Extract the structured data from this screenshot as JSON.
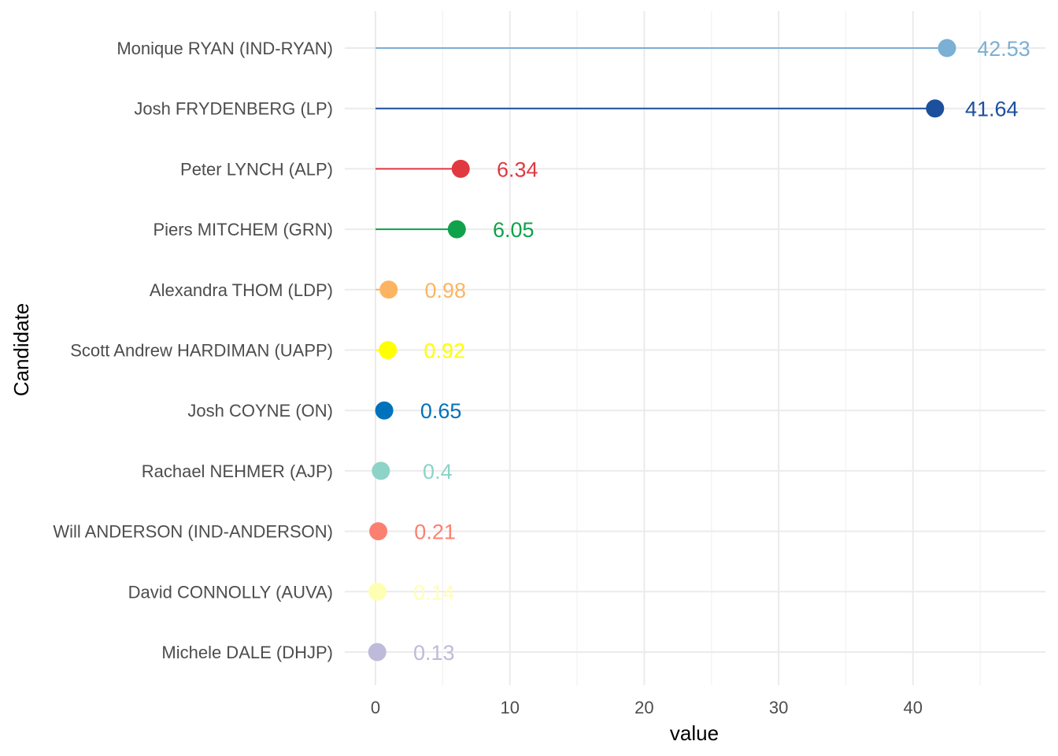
{
  "chart_data": {
    "type": "lollipop",
    "xlabel": "value",
    "ylabel": "Candidate",
    "xlim": [
      -2,
      48
    ],
    "xticks": [
      0,
      10,
      20,
      30,
      40
    ],
    "grid": true,
    "categories": [
      "Monique RYAN (IND-RYAN)",
      "Josh FRYDENBERG (LP)",
      "Peter LYNCH (ALP)",
      "Piers MITCHEM (GRN)",
      "Alexandra THOM (LDP)",
      "Scott Andrew HARDIMAN (UAPP)",
      "Josh COYNE (ON)",
      "Rachael NEHMER (AJP)",
      "Will ANDERSON (IND-ANDERSON)",
      "David CONNOLLY (AUVA)",
      "Michele DALE (DHJP)"
    ],
    "values": [
      42.53,
      41.64,
      6.34,
      6.05,
      0.98,
      0.92,
      0.65,
      0.4,
      0.21,
      0.14,
      0.13
    ],
    "value_labels": [
      "42.53",
      "41.64",
      "6.34",
      "6.05",
      "0.98",
      "0.92",
      "0.65",
      "0.4",
      "0.21",
      "0.14",
      "0.13"
    ],
    "colors": [
      "#7BAFD4",
      "#1C4F9C",
      "#E13940",
      "#10A14B",
      "#FDB462",
      "#FFFF00",
      "#0072BC",
      "#8DD3C7",
      "#FB8072",
      "#FFFFB3",
      "#BEBADA"
    ]
  }
}
